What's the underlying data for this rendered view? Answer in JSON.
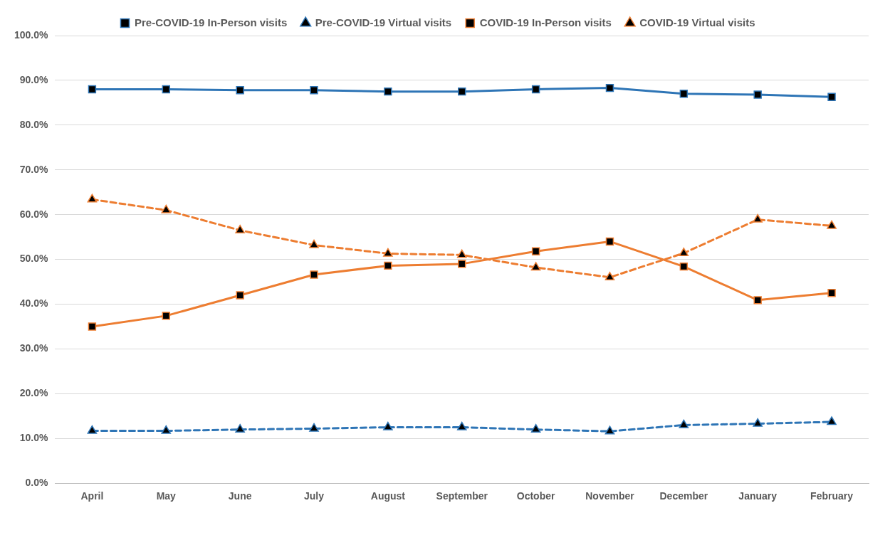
{
  "chart_data": {
    "type": "line",
    "categories": [
      "April",
      "May",
      "June",
      "July",
      "August",
      "September",
      "October",
      "November",
      "December",
      "January",
      "February"
    ],
    "series": [
      {
        "name": "Pre-COVID-19 In-Person visits",
        "color": "#2e75b6",
        "marker": "square",
        "line_style": "solid",
        "values": [
          88.0,
          88.0,
          87.8,
          87.8,
          87.5,
          87.5,
          88.0,
          88.3,
          87.0,
          86.8,
          86.3
        ]
      },
      {
        "name": "Pre-COVID-19 Virtual visits",
        "color": "#2e75b6",
        "marker": "triangle",
        "line_style": "dashed",
        "values": [
          11.7,
          11.7,
          12.0,
          12.2,
          12.5,
          12.5,
          12.0,
          11.6,
          13.0,
          13.3,
          13.7
        ]
      },
      {
        "name": "COVID-19 In-Person visits",
        "color": "#ed7d31",
        "marker": "square",
        "line_style": "solid",
        "values": [
          35.0,
          37.4,
          42.0,
          46.6,
          48.6,
          49.0,
          51.8,
          54.0,
          48.4,
          40.9,
          42.5
        ]
      },
      {
        "name": "COVID-19 Virtual visits",
        "color": "#ed7d31",
        "marker": "triangle",
        "line_style": "dashed",
        "values": [
          63.4,
          61.0,
          56.5,
          53.2,
          51.3,
          51.0,
          48.2,
          46.0,
          51.4,
          58.9,
          57.5
        ]
      }
    ],
    "ylim": [
      0,
      100
    ],
    "yticks": [
      {
        "value": 0,
        "label": "0.0%"
      },
      {
        "value": 10,
        "label": "10.0%"
      },
      {
        "value": 20,
        "label": "20.0%"
      },
      {
        "value": 30,
        "label": "30.0%"
      },
      {
        "value": 40,
        "label": "40.0%"
      },
      {
        "value": 50,
        "label": "50.0%"
      },
      {
        "value": 60,
        "label": "60.0%"
      },
      {
        "value": 70,
        "label": "70.0%"
      },
      {
        "value": 80,
        "label": "80.0%"
      },
      {
        "value": 90,
        "label": "90.0%"
      },
      {
        "value": 100,
        "label": "100.0%"
      }
    ],
    "grid": "y",
    "legend": "top"
  }
}
